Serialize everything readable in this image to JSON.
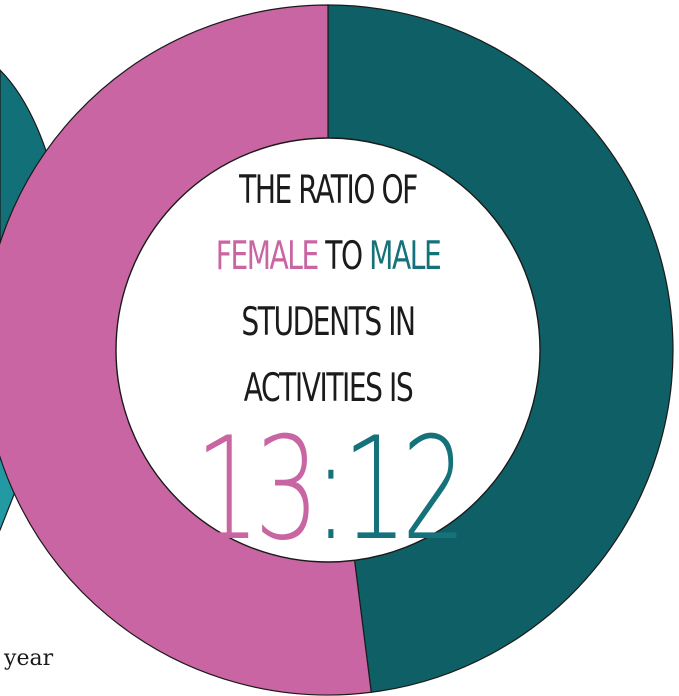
{
  "chart_data": {
    "type": "pie",
    "style": "donut",
    "slices": [
      {
        "label": "Female",
        "value": 13,
        "color": "#c965a2"
      },
      {
        "label": "Male",
        "value": 12,
        "color": "#0f5f66"
      }
    ],
    "center_text": {
      "line1": "THE RATIO OF",
      "female_word": "FEMALE",
      "to_word": "TO",
      "male_word": "MALE",
      "line3": "STUDENTS IN",
      "line4": "ACTIVITIES IS",
      "ratio_female": "13",
      "ratio_sep": ":",
      "ratio_male": "12"
    }
  },
  "side_chart": {
    "colors": {
      "main": "#117078",
      "light": "#2399a4"
    }
  },
  "caption": {
    "text": "l year"
  }
}
